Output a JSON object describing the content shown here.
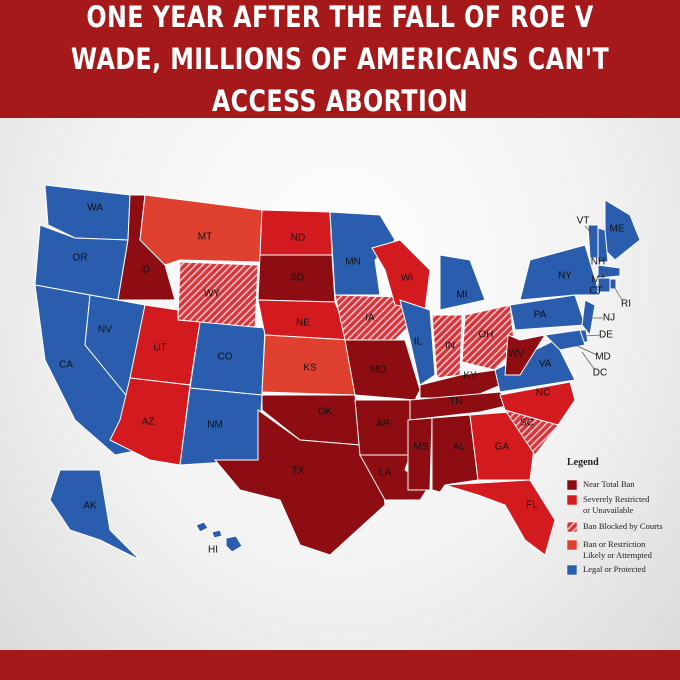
{
  "header": {
    "title": "ONE YEAR AFTER THE FALL OF ROE V WADE, MILLIONS OF AMERICANS CAN'T ACCESS ABORTION"
  },
  "map": {
    "states": [
      {
        "label": "WA",
        "color": "#2a5dad"
      },
      {
        "label": "OR",
        "color": "#2a5dad"
      },
      {
        "label": "CA",
        "color": "#2a5dad"
      },
      {
        "label": "NV",
        "color": "#2a5dad"
      },
      {
        "label": "ID",
        "color": "#8e0d12"
      },
      {
        "label": "MT",
        "color": "#e0402f"
      },
      {
        "label": "WY",
        "color": "#d8323a",
        "hatched": true
      },
      {
        "label": "UT",
        "color": "#d21a1f"
      },
      {
        "label": "AZ",
        "color": "#d21a1f"
      },
      {
        "label": "CO",
        "color": "#2a5dad"
      },
      {
        "label": "NM",
        "color": "#2a5dad"
      },
      {
        "label": "ND",
        "color": "#d21a1f"
      },
      {
        "label": "SD",
        "color": "#8e0d12"
      },
      {
        "label": "NE",
        "color": "#d21a1f"
      },
      {
        "label": "KS",
        "color": "#e0402f"
      },
      {
        "label": "OK",
        "color": "#8e0d12"
      },
      {
        "label": "TX",
        "color": "#8e0d12"
      },
      {
        "label": "MN",
        "color": "#2a5dad"
      },
      {
        "label": "IA",
        "color": "#d8323a",
        "hatched": true
      },
      {
        "label": "MO",
        "color": "#8e0d12"
      },
      {
        "label": "AR",
        "color": "#8e0d12"
      },
      {
        "label": "LA",
        "color": "#8e0d12"
      },
      {
        "label": "WI",
        "color": "#d21a1f"
      },
      {
        "label": "IL",
        "color": "#2a5dad"
      },
      {
        "label": "MI",
        "color": "#2a5dad"
      },
      {
        "label": "IN",
        "color": "#d8323a",
        "hatched": true
      },
      {
        "label": "OH",
        "color": "#d8323a",
        "hatched": true
      },
      {
        "label": "KY",
        "color": "#8e0d12"
      },
      {
        "label": "TN",
        "color": "#8e0d12"
      },
      {
        "label": "MS",
        "color": "#8e0d12"
      },
      {
        "label": "AL",
        "color": "#8e0d12"
      },
      {
        "label": "GA",
        "color": "#d21a1f"
      },
      {
        "label": "FL",
        "color": "#d21a1f"
      },
      {
        "label": "SC",
        "color": "#d8323a",
        "hatched": true
      },
      {
        "label": "NC",
        "color": "#d21a1f"
      },
      {
        "label": "VA",
        "color": "#2a5dad"
      },
      {
        "label": "WV",
        "color": "#8e0d12"
      },
      {
        "label": "PA",
        "color": "#2a5dad"
      },
      {
        "label": "NY",
        "color": "#2a5dad"
      },
      {
        "label": "VT",
        "color": "#2a5dad"
      },
      {
        "label": "ME",
        "color": "#2a5dad"
      },
      {
        "label": "NH",
        "color": "#2a5dad"
      },
      {
        "label": "MA",
        "color": "#2a5dad"
      },
      {
        "label": "CT",
        "color": "#2a5dad"
      },
      {
        "label": "RI",
        "color": "#2a5dad"
      },
      {
        "label": "NJ",
        "color": "#2a5dad"
      },
      {
        "label": "DE",
        "color": "#2a5dad"
      },
      {
        "label": "MD",
        "color": "#2a5dad"
      },
      {
        "label": "AK",
        "color": "#2a5dad"
      },
      {
        "label": "HI",
        "color": "#2a5dad"
      }
    ],
    "extra_labels": [
      "DC"
    ]
  },
  "legend": {
    "title": "Legend",
    "items": [
      {
        "lines": [
          "Near Total Ban"
        ],
        "color": "#8e0d12"
      },
      {
        "lines": [
          "Severely Restricted",
          "or Unavailable"
        ],
        "color": "#d21a1f"
      },
      {
        "lines": [
          "Ban Blocked by Courts"
        ],
        "color": "#d8323a",
        "hatched": true
      },
      {
        "lines": [
          "Ban or Restriction",
          "Likely or Attempted"
        ],
        "color": "#e0402f"
      },
      {
        "lines": [
          "Legal or Protected"
        ],
        "color": "#2a5dad"
      }
    ]
  }
}
